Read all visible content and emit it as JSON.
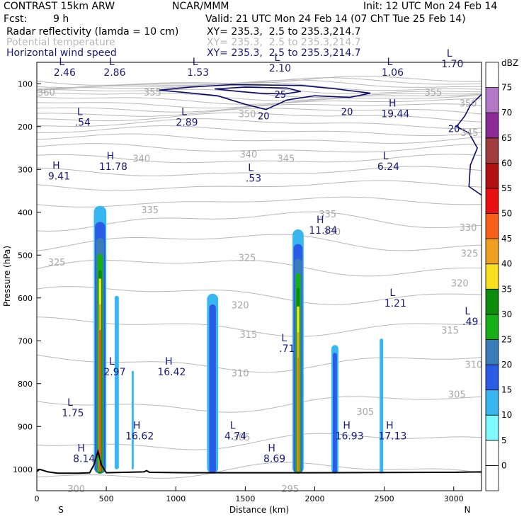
{
  "header": {
    "model": "CONTRAST 15km ARW",
    "org": "NCAR/MMM",
    "init": "Init: 12 UTC Mon 24 Feb 14",
    "fcst_label": "Fcst:",
    "fcst_value": "9 h",
    "valid": "Valid: 21 UTC Mon 24 Feb 14 (07 ChT Tue 25 Feb 14)",
    "fields": [
      {
        "name": "Radar reflectivity (lamda = 10 cm)",
        "xy": "XY= 235.3,  2.5 to 235.3,214.7",
        "color": "#000000"
      },
      {
        "name": "Potential temperature",
        "xy": "XY= 235.3,  2.5 to 235.3,214.7",
        "color": "#b8b8b8"
      },
      {
        "name": "Horizontal wind speed",
        "xy": "XY= 235.3,  2.5 to 235.3,214.7",
        "color": "#1a1a7a"
      }
    ]
  },
  "chart_data": {
    "type": "vertical-cross-section",
    "xlabel": "Distance (km)",
    "ylabel": "Pressure (hPa)",
    "x_left_label": "S",
    "x_right_label": "N",
    "xlim": [
      0,
      3200
    ],
    "ylim": [
      50,
      1050
    ],
    "x_ticks": [
      0,
      500,
      1000,
      1500,
      2000,
      2500,
      3000
    ],
    "y_ticks": [
      100,
      200,
      300,
      400,
      500,
      600,
      700,
      800,
      900,
      1000
    ],
    "colorbar": {
      "unit": "dBZ",
      "levels": [
        0,
        5,
        10,
        15,
        20,
        25,
        30,
        35,
        40,
        45,
        50,
        55,
        60,
        65,
        70,
        75
      ],
      "colors": [
        "#ffffff",
        "#ffffff",
        "#7ffaff",
        "#38b6f0",
        "#2b5ce6",
        "#3a7cb8",
        "#16b016",
        "#0c8c0c",
        "#f8e020",
        "#f0a020",
        "#f86018",
        "#e81010",
        "#b01010",
        "#a03c3c",
        "#8c2a98",
        "#b478c8",
        "#ffffff"
      ]
    },
    "theta_labels": [
      {
        "text": "360",
        "x": 5,
        "p": 128
      },
      {
        "text": "355",
        "x": 770,
        "p": 128
      },
      {
        "text": "355",
        "x": 2790,
        "p": 128
      },
      {
        "text": "350",
        "x": 1450,
        "p": 178
      },
      {
        "text": "350",
        "x": 3040,
        "p": 153
      },
      {
        "text": "345",
        "x": 1730,
        "p": 282
      },
      {
        "text": "345",
        "x": 3050,
        "p": 222
      },
      {
        "text": "340",
        "x": 690,
        "p": 282
      },
      {
        "text": "340",
        "x": 1460,
        "p": 272
      },
      {
        "text": "335",
        "x": 750,
        "p": 402
      },
      {
        "text": "335",
        "x": 2030,
        "p": 412
      },
      {
        "text": "330",
        "x": 2060,
        "p": 453
      },
      {
        "text": "330",
        "x": 3040,
        "p": 443
      },
      {
        "text": "325",
        "x": 80,
        "p": 524
      },
      {
        "text": "325",
        "x": 1450,
        "p": 514
      },
      {
        "text": "325",
        "x": 3050,
        "p": 504
      },
      {
        "text": "320",
        "x": 1400,
        "p": 624
      },
      {
        "text": "320",
        "x": 2980,
        "p": 573
      },
      {
        "text": "315",
        "x": 1460,
        "p": 693
      },
      {
        "text": "315",
        "x": 2910,
        "p": 683
      },
      {
        "text": "310",
        "x": 1400,
        "p": 783
      },
      {
        "text": "310",
        "x": 3080,
        "p": 763
      },
      {
        "text": "305",
        "x": 2300,
        "p": 873
      },
      {
        "text": "305",
        "x": 2960,
        "p": 833
      },
      {
        "text": "305",
        "x": 1410,
        "p": 933
      },
      {
        "text": "300",
        "x": 220,
        "p": 1053
      },
      {
        "text": "295",
        "x": 1760,
        "p": 1053
      }
    ],
    "wind_contour_labels": [
      {
        "text": "25",
        "x": 1710,
        "p": 133
      },
      {
        "text": "20",
        "x": 1590,
        "p": 183
      },
      {
        "text": "20",
        "x": 2190,
        "p": 173
      },
      {
        "text": "20",
        "x": 2960,
        "p": 213
      }
    ],
    "extrema": [
      {
        "type": "L",
        "value": "2.46",
        "x": 200,
        "p": 78
      },
      {
        "type": "L",
        "value": "2.86",
        "x": 560,
        "p": 78
      },
      {
        "type": "L",
        "value": "1.53",
        "x": 1160,
        "p": 78
      },
      {
        "type": "L",
        "value": "2.10",
        "x": 1750,
        "p": 68
      },
      {
        "type": "L",
        "value": "1.06",
        "x": 2560,
        "p": 78
      },
      {
        "type": "L",
        "value": "1.70",
        "x": 2990,
        "p": 58
      },
      {
        "type": "L",
        "value": ".54",
        "x": 330,
        "p": 195
      },
      {
        "type": "L",
        "value": "2.89",
        "x": 1080,
        "p": 195
      },
      {
        "type": "H",
        "value": "19.44",
        "x": 2580,
        "p": 175
      },
      {
        "type": "H",
        "value": "11.78",
        "x": 550,
        "p": 298
      },
      {
        "type": "H",
        "value": "9.41",
        "x": 160,
        "p": 320
      },
      {
        "type": "L",
        "value": ".53",
        "x": 1560,
        "p": 325
      },
      {
        "type": "L",
        "value": "6.24",
        "x": 2530,
        "p": 298
      },
      {
        "type": "H",
        "value": "11.84",
        "x": 2060,
        "p": 447
      },
      {
        "type": "L",
        "value": "1.21",
        "x": 2580,
        "p": 617
      },
      {
        "type": "L",
        "value": ".49",
        "x": 3120,
        "p": 660
      },
      {
        "type": "L",
        "value": ".71",
        "x": 1800,
        "p": 723
      },
      {
        "type": "L",
        "value": "2.97",
        "x": 560,
        "p": 777
      },
      {
        "type": "H",
        "value": "16.42",
        "x": 970,
        "p": 777
      },
      {
        "type": "L",
        "value": "1.75",
        "x": 260,
        "p": 873
      },
      {
        "type": "H",
        "value": "16.62",
        "x": 740,
        "p": 927
      },
      {
        "type": "L",
        "value": "4.74",
        "x": 1430,
        "p": 927
      },
      {
        "type": "H",
        "value": "16.93",
        "x": 2250,
        "p": 927
      },
      {
        "type": "H",
        "value": "17.13",
        "x": 2560,
        "p": 927
      },
      {
        "type": "H",
        "value": "8.14",
        "x": 340,
        "p": 980
      },
      {
        "type": "H",
        "value": "8.69",
        "x": 1710,
        "p": 980
      }
    ],
    "reflectivity_cells": [
      {
        "x_center": 455,
        "p_top": 385,
        "p_bottom": 1010,
        "width_km": 90,
        "max_dbz": 30
      },
      {
        "x_center": 1880,
        "p_top": 440,
        "p_bottom": 1010,
        "width_km": 80,
        "max_dbz": 30
      },
      {
        "x_center": 1265,
        "p_top": 590,
        "p_bottom": 1010,
        "width_km": 80,
        "max_dbz": 15
      },
      {
        "x_center": 2145,
        "p_top": 710,
        "p_bottom": 1010,
        "width_km": 50,
        "max_dbz": 15
      },
      {
        "x_center": 2480,
        "p_top": 695,
        "p_bottom": 1010,
        "width_km": 25,
        "max_dbz": 10
      },
      {
        "x_center": 575,
        "p_top": 595,
        "p_bottom": 1000,
        "width_km": 30,
        "max_dbz": 10
      },
      {
        "x_center": 690,
        "p_top": 770,
        "p_bottom": 1000,
        "width_km": 15,
        "max_dbz": 10
      }
    ],
    "terrain": [
      [
        0,
        1005
      ],
      [
        20,
        1000
      ],
      [
        50,
        1003
      ],
      [
        80,
        1006
      ],
      [
        150,
        1009
      ],
      [
        300,
        1009
      ],
      [
        380,
        1008
      ],
      [
        410,
        990
      ],
      [
        440,
        958
      ],
      [
        465,
        990
      ],
      [
        500,
        1008
      ],
      [
        770,
        1006
      ],
      [
        790,
        1003
      ],
      [
        810,
        1007
      ],
      [
        1100,
        1008
      ],
      [
        2000,
        1008
      ],
      [
        3000,
        1007
      ],
      [
        3200,
        1006
      ]
    ]
  }
}
